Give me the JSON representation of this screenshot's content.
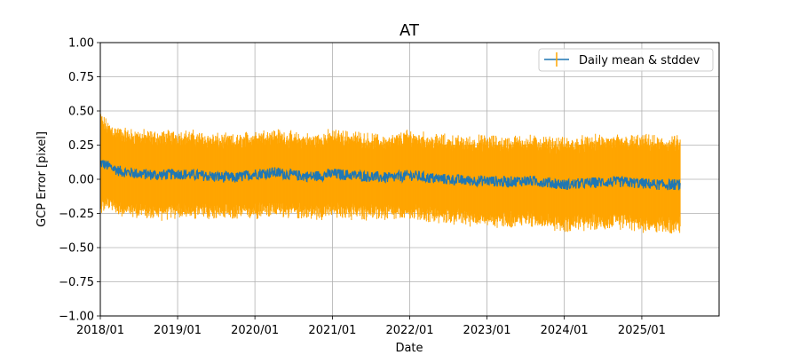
{
  "chart_data": {
    "type": "line",
    "title": "AT",
    "xlabel": "Date",
    "ylabel": "GCP Error [pixel]",
    "x_range": [
      "2018/01/01",
      "2026/01/01"
    ],
    "ylim": [
      -1.0,
      1.0
    ],
    "grid": true,
    "legend_position": "top-right",
    "x_tick_labels": [
      "2018/01",
      "2019/01",
      "2020/01",
      "2021/01",
      "2022/01",
      "2023/01",
      "2024/01",
      "2025/01"
    ],
    "y_tick_labels": [
      "1.00",
      "0.75",
      "0.50",
      "0.25",
      "0.00",
      "−0.25",
      "−0.50",
      "−0.75",
      "−1.00"
    ],
    "series": [
      {
        "name": "Daily mean & stddev",
        "kind": "errorbar",
        "line_color": "#1f77b4",
        "errorbar_color": "#ffa500",
        "x": [
          "2018/01/01",
          "2018/02/01",
          "2018/04/01",
          "2018/07/01",
          "2018/10/01",
          "2019/01/01",
          "2019/04/01",
          "2019/07/01",
          "2019/10/01",
          "2020/01/01",
          "2020/04/01",
          "2020/07/01",
          "2020/10/01",
          "2021/01/01",
          "2021/04/01",
          "2021/07/01",
          "2021/10/01",
          "2022/01/01",
          "2022/04/01",
          "2022/07/01",
          "2022/10/01",
          "2023/01/01",
          "2023/04/01",
          "2023/07/01",
          "2023/10/01",
          "2024/01/01",
          "2024/04/01",
          "2024/07/01",
          "2024/10/01",
          "2025/01/01",
          "2025/04/01",
          "2025/07/01"
        ],
        "mean": [
          0.12,
          0.1,
          0.06,
          0.04,
          0.03,
          0.04,
          0.03,
          0.02,
          0.01,
          0.04,
          0.05,
          0.03,
          0.02,
          0.04,
          0.03,
          0.02,
          0.01,
          0.03,
          0.01,
          0.0,
          -0.01,
          -0.01,
          -0.02,
          -0.01,
          -0.02,
          -0.04,
          -0.03,
          -0.02,
          -0.02,
          -0.03,
          -0.04,
          -0.04
        ],
        "std": [
          0.32,
          0.28,
          0.27,
          0.27,
          0.27,
          0.27,
          0.27,
          0.26,
          0.26,
          0.27,
          0.27,
          0.26,
          0.26,
          0.27,
          0.27,
          0.26,
          0.26,
          0.28,
          0.27,
          0.27,
          0.27,
          0.28,
          0.28,
          0.28,
          0.28,
          0.29,
          0.29,
          0.29,
          0.29,
          0.3,
          0.3,
          0.3
        ]
      }
    ]
  }
}
